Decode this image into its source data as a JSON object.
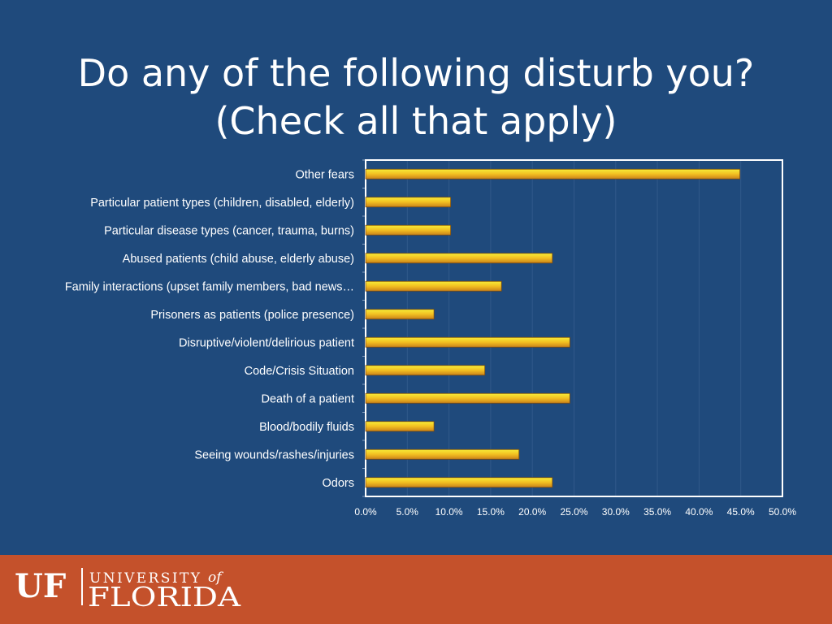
{
  "slide": {
    "title_line1": "Do any of the following disturb you?",
    "title_line2": "(Check all that apply)"
  },
  "chart_data": {
    "type": "bar",
    "orientation": "horizontal",
    "categories": [
      "Other fears",
      "Particular patient types (children, disabled, elderly)",
      "Particular disease types (cancer, trauma, burns)",
      "Abused patients (child abuse, elderly abuse)",
      "Family interactions (upset family members, bad news…",
      "Prisoners as patients (police presence)",
      "Disruptive/violent/delirious patient",
      "Code/Crisis Situation",
      "Death of a patient",
      "Blood/bodily fluids",
      "Seeing wounds/rashes/injuries",
      "Odors"
    ],
    "values": [
      44.9,
      10.2,
      10.2,
      22.4,
      16.3,
      8.2,
      24.5,
      14.3,
      24.5,
      8.2,
      18.4,
      22.4
    ],
    "xlim": [
      0,
      50
    ],
    "ticks": [
      0,
      5,
      10,
      15,
      20,
      25,
      30,
      35,
      40,
      45,
      50
    ],
    "tick_labels": [
      "0.0%",
      "5.0%",
      "10.0%",
      "15.0%",
      "20.0%",
      "25.0%",
      "30.0%",
      "35.0%",
      "40.0%",
      "45.0%",
      "50.0%"
    ],
    "grid": true,
    "colors": {
      "bar_light": "#f7ec38",
      "bar_mid": "#f2bf21",
      "bar_dark": "#c9821a",
      "bar_edge": "#7a4a10",
      "plot_border": "#ffffff",
      "grid": "#31598a",
      "text": "#ffffff"
    }
  },
  "footer": {
    "logo_mark": "UF",
    "logo_line1": "UNIVERSITY",
    "logo_of": "of",
    "logo_line2": "FLORIDA",
    "background": "#c4512b"
  }
}
